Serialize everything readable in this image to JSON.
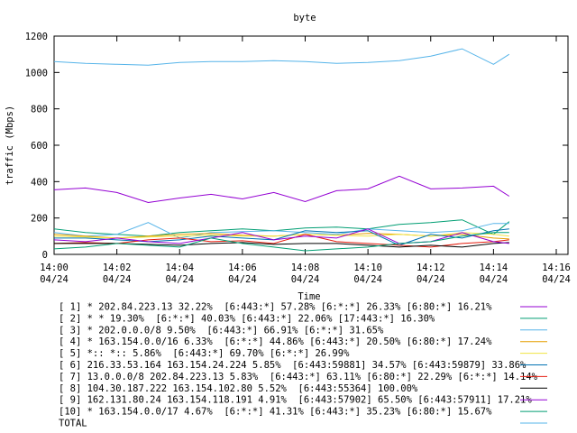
{
  "chart_data": {
    "type": "line",
    "title": "byte",
    "xlabel": "Time",
    "ylabel": "traffic (Mbps)",
    "x": [
      "14:00:00",
      "14:01:00",
      "14:02:00",
      "14:03:00",
      "14:04:00",
      "14:05:00",
      "14:06:00",
      "14:07:00",
      "14:08:00",
      "14:09:00",
      "14:10:00",
      "14:11:00",
      "14:12:00",
      "14:13:00",
      "14:14:00",
      "14:14:30"
    ],
    "xlim": [
      "14:00:00",
      "14:16:00"
    ],
    "xticks": [
      {
        "value": "14:00:00",
        "label": "14:00",
        "date": "04/24"
      },
      {
        "value": "14:02:00",
        "label": "14:02",
        "date": "04/24"
      },
      {
        "value": "14:04:00",
        "label": "14:04",
        "date": "04/24"
      },
      {
        "value": "14:06:00",
        "label": "14:06",
        "date": "04/24"
      },
      {
        "value": "14:08:00",
        "label": "14:08",
        "date": "04/24"
      },
      {
        "value": "14:10:00",
        "label": "14:10",
        "date": "04/24"
      },
      {
        "value": "14:12:00",
        "label": "14:12",
        "date": "04/24"
      },
      {
        "value": "14:14:00",
        "label": "14:14",
        "date": "04/24"
      },
      {
        "value": "14:16:00",
        "label": "14:16",
        "date": "04/24"
      }
    ],
    "ylim": [
      0,
      1200
    ],
    "yticks": [
      0,
      200,
      400,
      600,
      800,
      1000,
      1200
    ],
    "series": [
      {
        "name": "[ 1] * 202.84.223.13 32.22%  [6:443:*] 57.28% [6:*:*] 26.33% [6:80:*] 16.21%",
        "color": "#9400d3",
        "values": [
          355,
          365,
          340,
          285,
          310,
          330,
          305,
          340,
          290,
          350,
          360,
          430,
          360,
          365,
          375,
          320
        ]
      },
      {
        "name": "[ 2] * * 19.30%  [6:*:*] 40.03% [6:443:*] 22.06% [17:443:*] 16.30%",
        "color": "#009e73",
        "values": [
          140,
          120,
          110,
          100,
          120,
          130,
          140,
          130,
          145,
          150,
          140,
          165,
          175,
          190,
          110,
          180
        ]
      },
      {
        "name": "[ 3] * 202.0.0.0/8 9.50%  [6:443:*] 66.91% [6:*:*] 31.65%",
        "color": "#56b4e9",
        "values": [
          120,
          100,
          110,
          175,
          90,
          120,
          125,
          130,
          120,
          110,
          140,
          130,
          120,
          130,
          170,
          170
        ]
      },
      {
        "name": "[ 4] * 163.154.0.0/16 6.33%  [6:*:*] 44.86% [6:443:*] 20.50% [6:80:*] 17.24%",
        "color": "#e69f00",
        "values": [
          110,
          100,
          90,
          100,
          110,
          115,
          105,
          100,
          110,
          105,
          115,
          110,
          100,
          110,
          90,
          85
        ]
      },
      {
        "name": "[ 5] *:: *:: 5.86%  [6:443:*] 69.70% [6:*:*] 26.99%",
        "color": "#f0e442",
        "values": [
          100,
          95,
          90,
          95,
          100,
          105,
          100,
          100,
          110,
          105,
          100,
          110,
          100,
          120,
          110,
          100
        ]
      },
      {
        "name": "[ 6] 216.33.53.164 163.154.24.224 5.85%  [6:443:59881] 34.57% [6:443:59879] 33.86%",
        "color": "#0072b2",
        "values": [
          90,
          90,
          80,
          70,
          80,
          100,
          90,
          80,
          130,
          120,
          130,
          50,
          110,
          90,
          130,
          140
        ]
      },
      {
        "name": "[ 7] 13.0.0.0/8 202.84.223.13 5.83%  [6:443:*] 63.11% [6:80:*] 22.29% [6:*:*] 14.14%",
        "color": "#e51e10",
        "values": [
          60,
          65,
          60,
          80,
          90,
          70,
          75,
          60,
          110,
          70,
          60,
          50,
          40,
          60,
          70,
          80
        ]
      },
      {
        "name": "[ 8] 104.30.187.222 163.154.102.80 5.52%  [6:443:55364] 100.00%",
        "color": "#000000",
        "values": [
          60,
          60,
          60,
          55,
          50,
          60,
          65,
          55,
          60,
          60,
          50,
          40,
          50,
          40,
          60,
          65
        ]
      },
      {
        "name": "[ 9] 162.131.80.24 163.154.118.191 4.91%  [6:443:57902] 65.50% [6:443:57911] 17.21%",
        "color": "#9400d3",
        "values": [
          80,
          70,
          90,
          70,
          60,
          90,
          120,
          80,
          100,
          90,
          140,
          60,
          70,
          120,
          70,
          60
        ]
      },
      {
        "name": "[10] * 163.154.0.0/17 4.67%  [6:*:*] 41.31% [6:443:*] 35.23% [6:80:*] 15.67%",
        "color": "#009e73",
        "values": [
          30,
          40,
          60,
          50,
          40,
          90,
          60,
          40,
          20,
          30,
          40,
          60,
          70,
          100,
          120,
          120
        ]
      },
      {
        "name": "TOTAL",
        "color": "#56b4e9",
        "values": [
          1060,
          1050,
          1045,
          1040,
          1055,
          1060,
          1060,
          1065,
          1060,
          1050,
          1055,
          1065,
          1090,
          1130,
          1045,
          1100
        ]
      }
    ]
  }
}
